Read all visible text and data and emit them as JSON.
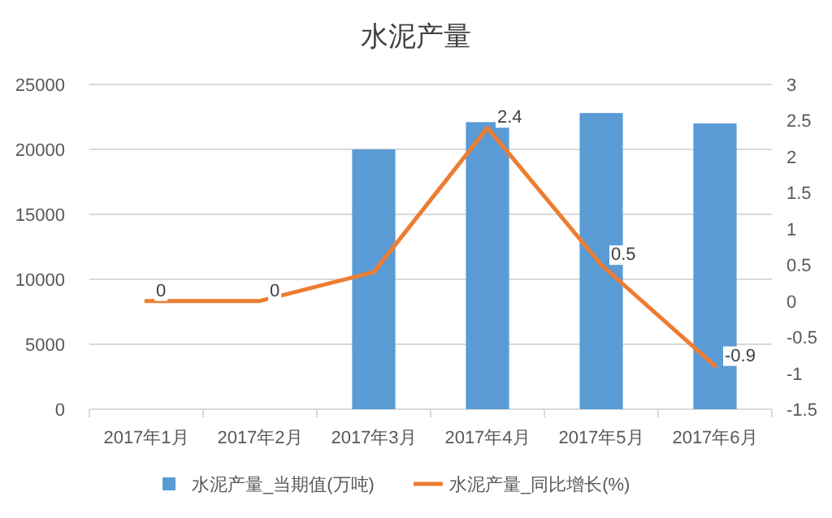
{
  "chart_data": {
    "type": "bar",
    "title": "水泥产量",
    "categories": [
      "2017年1月",
      "2017年2月",
      "2017年3月",
      "2017年4月",
      "2017年5月",
      "2017年6月"
    ],
    "series": [
      {
        "name": "水泥产量_当期值(万吨)",
        "color": "#5b9bd5",
        "values": [
          null,
          null,
          20000,
          22100,
          22800,
          22000
        ]
      },
      {
        "name": "水泥产量_同比增长(%)",
        "type": "line",
        "axis": "y2",
        "color": "#ed7d31",
        "values": [
          0,
          0,
          0.4,
          2.4,
          0.5,
          -0.9
        ],
        "value_labels": [
          "0",
          "0",
          null,
          "2.4",
          "0.5",
          "-0.9"
        ]
      }
    ],
    "ylim": [
      0,
      25000
    ],
    "yticks": [
      0,
      5000,
      10000,
      15000,
      20000,
      25000
    ],
    "y2lim": [
      -1.5,
      3
    ],
    "y2ticks": [
      -1.5,
      -1,
      -0.5,
      0,
      0.5,
      1,
      1.5,
      2,
      2.5,
      3
    ],
    "grid": "y",
    "legend": "bottom",
    "marker": "none",
    "line_style": "solid"
  }
}
